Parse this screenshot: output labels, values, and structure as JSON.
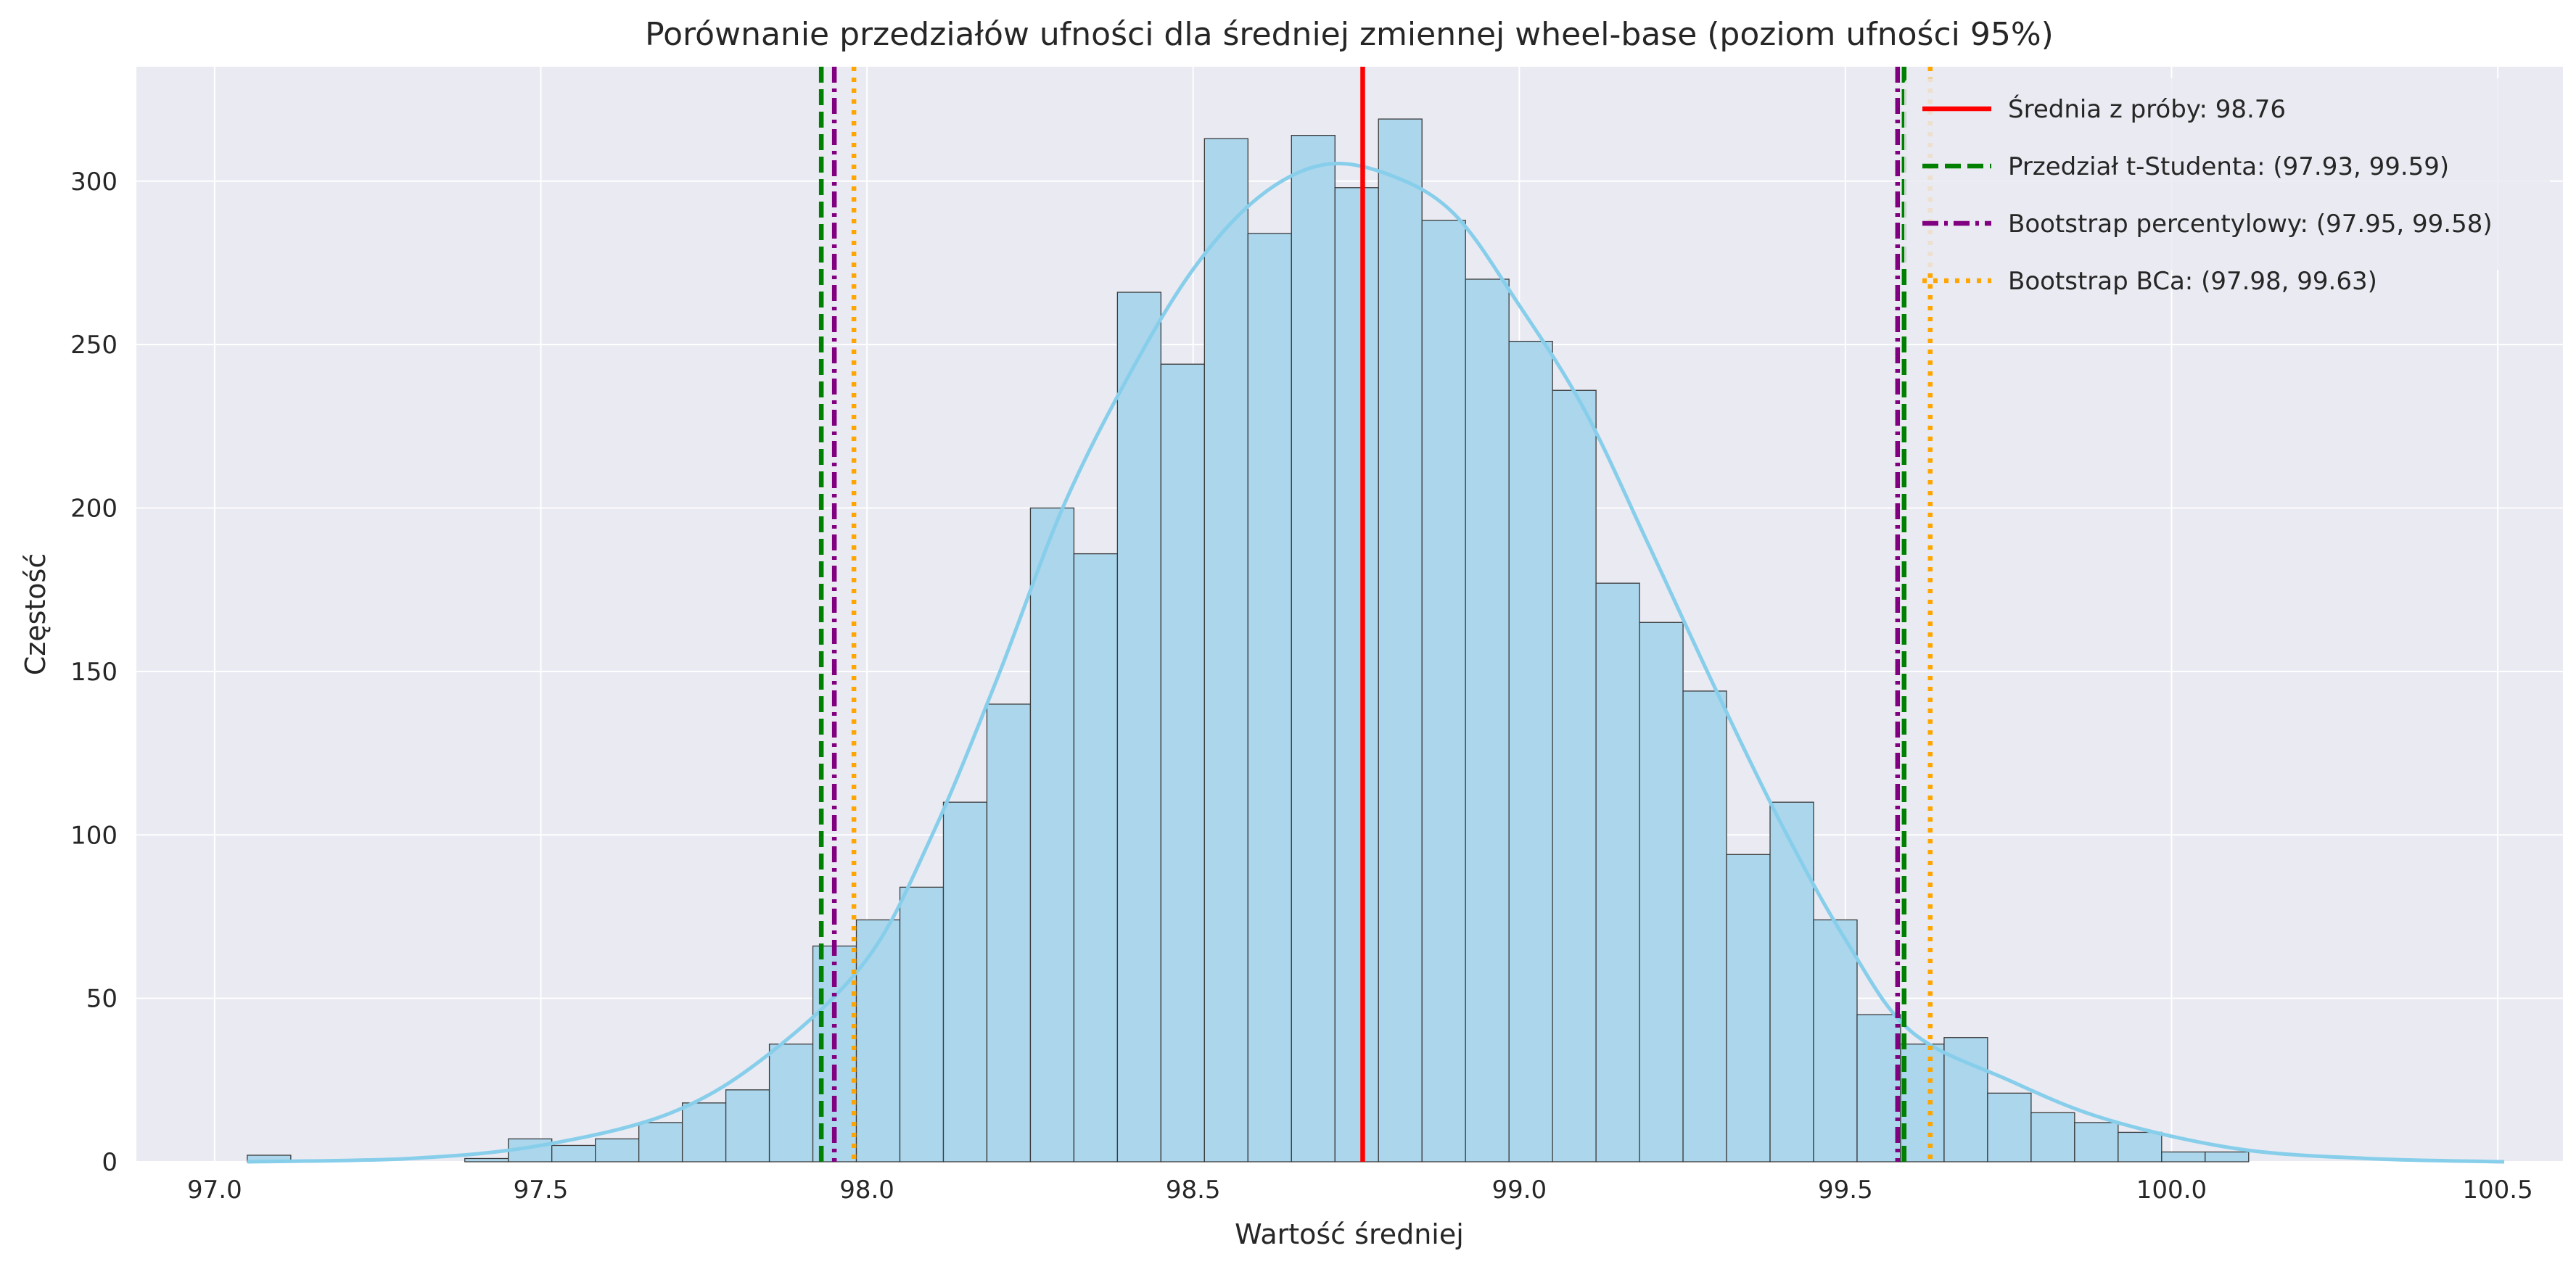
{
  "chart_data": {
    "type": "bar",
    "title": "Porównanie przedziałów ufności dla średniej zmiennej wheel-base (poziom ufności 95%)",
    "xlabel": "Wartość średniej",
    "ylabel": "Częstość",
    "xlim": [
      96.88,
      100.6
    ],
    "ylim": [
      0,
      335
    ],
    "xticks": [
      97.0,
      97.5,
      98.0,
      98.5,
      99.0,
      99.5,
      100.0,
      100.5
    ],
    "xtick_labels": [
      "97.0",
      "97.5",
      "98.0",
      "98.5",
      "99.0",
      "99.5",
      "100.0",
      "100.5"
    ],
    "yticks": [
      0,
      50,
      100,
      150,
      200,
      250,
      300
    ],
    "ytick_labels": [
      "0",
      "50",
      "100",
      "150",
      "200",
      "250",
      "300"
    ],
    "grid": true,
    "legend_position": "top-right",
    "histogram": {
      "bin_start": 97.05,
      "bin_width": 0.0667,
      "counts": [
        2,
        0,
        0,
        0,
        0,
        1,
        7,
        5,
        7,
        12,
        18,
        22,
        36,
        66,
        74,
        84,
        110,
        140,
        200,
        186,
        266,
        244,
        313,
        284,
        314,
        298,
        319,
        288,
        270,
        251,
        236,
        177,
        165,
        144,
        94,
        110,
        74,
        45,
        36,
        38,
        21,
        15,
        12,
        9,
        3,
        3
      ],
      "color": "#abd6ec",
      "edge_color": "#3a3a3a"
    },
    "kde": {
      "color": "#87ceeb",
      "x": [
        97.05,
        97.3,
        97.5,
        97.7,
        97.85,
        98.0,
        98.1,
        98.2,
        98.3,
        98.4,
        98.5,
        98.6,
        98.7,
        98.8,
        98.9,
        99.0,
        99.1,
        99.2,
        99.3,
        99.4,
        99.5,
        99.6,
        99.75,
        99.9,
        100.1,
        100.3,
        100.51
      ],
      "y": [
        0,
        1,
        5,
        15,
        33,
        62,
        100,
        148,
        200,
        240,
        273,
        295,
        305,
        302,
        290,
        262,
        230,
        188,
        145,
        104,
        68,
        40,
        25,
        13,
        4,
        1,
        0
      ]
    },
    "lines": [
      {
        "name": "Średnia z próby: 98.76",
        "x": [
          98.76
        ],
        "color": "#ff0000",
        "style": "solid"
      },
      {
        "name": "Przedział t-Studenta: (97.93, 99.59)",
        "x": [
          97.93,
          99.59
        ],
        "color": "#008000",
        "style": "dashed"
      },
      {
        "name": "Bootstrap percentylowy: (97.95, 99.58)",
        "x": [
          97.95,
          99.58
        ],
        "color": "#800080",
        "style": "dashdot"
      },
      {
        "name": "Bootstrap BCa: (97.98, 99.63)",
        "x": [
          97.98,
          99.63
        ],
        "color": "#ffa500",
        "style": "dotted"
      }
    ],
    "plot_background": "#eaeaf2",
    "grid_color": "#ffffff"
  }
}
